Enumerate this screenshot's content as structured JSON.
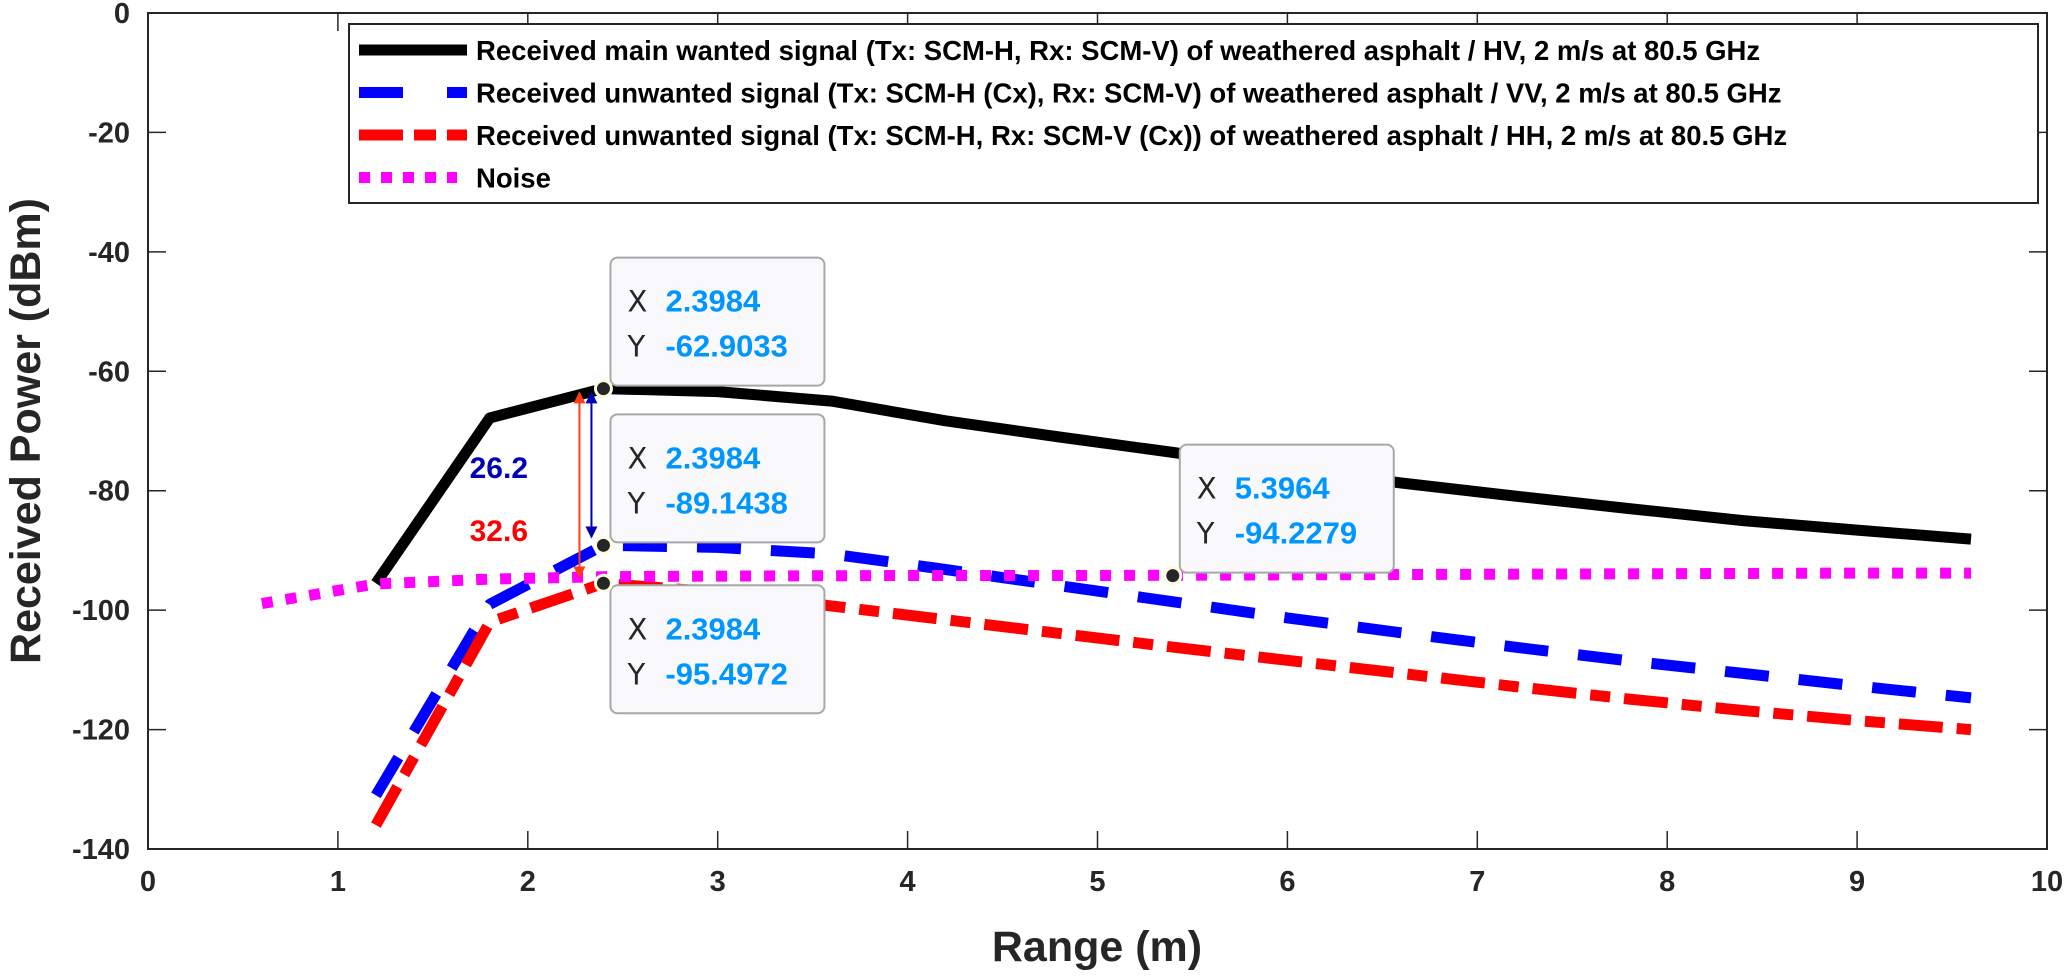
{
  "chart_data": {
    "type": "line",
    "title": "",
    "xlabel": "Range (m)",
    "ylabel": "Received Power (dBm)",
    "xlim": [
      0,
      10
    ],
    "ylim": [
      -140,
      0
    ],
    "xticks": [
      "0",
      "1",
      "2",
      "3",
      "4",
      "5",
      "6",
      "7",
      "8",
      "9",
      "10"
    ],
    "yticks": [
      "0",
      "-20",
      "-40",
      "-60",
      "-80",
      "-100",
      "-120",
      "-140"
    ],
    "grid": false,
    "legend_position": "top-right",
    "series": [
      {
        "name": "Received main wanted signal (Tx: SCM-H, Rx: SCM-V) of weathered asphalt / HV, 2 m/s at 80.5 GHz",
        "color": "#000000",
        "style": "solid",
        "x": [
          1.2,
          1.8,
          2.3984,
          3.0,
          3.6,
          4.2,
          4.8,
          5.4,
          6.0,
          6.6,
          7.2,
          7.8,
          8.4,
          9.0,
          9.6
        ],
        "y": [
          -95.5,
          -67.8,
          -62.9,
          -63.4,
          -65.0,
          -68.3,
          -71.0,
          -73.6,
          -76.3,
          -78.7,
          -80.9,
          -83.0,
          -85.0,
          -86.6,
          -88.1
        ]
      },
      {
        "name": "Received unwanted signal (Tx: SCM-H (Cx), Rx: SCM-V) of weathered asphalt / VV, 2 m/s at 80.5 GHz",
        "color": "#0000ff",
        "style": "dashed",
        "x": [
          1.2,
          1.8,
          2.3984,
          3.0,
          3.6,
          4.2,
          4.8,
          5.4,
          6.0,
          6.6,
          7.2,
          7.8,
          8.4,
          9.0,
          9.6
        ],
        "y": [
          -131.0,
          -99.0,
          -89.1438,
          -89.5,
          -90.6,
          -93.2,
          -95.9,
          -98.6,
          -101.3,
          -103.8,
          -106.2,
          -108.5,
          -110.6,
          -112.7,
          -114.7
        ]
      },
      {
        "name": "Received unwanted signal (Tx: SCM-H, Rx: SCM-V (Cx)) of weathered asphalt / HH, 2 m/s at 80.5 GHz",
        "color": "#ff0000",
        "style": "dashdot",
        "x": [
          1.2,
          1.8,
          2.3984,
          3.0,
          3.6,
          4.2,
          4.8,
          5.4,
          6.0,
          6.6,
          7.2,
          7.8,
          8.4,
          9.0,
          9.6
        ],
        "y": [
          -136.0,
          -102.0,
          -95.4972,
          -97.0,
          -99.3,
          -101.6,
          -103.9,
          -106.2,
          -108.4,
          -110.6,
          -112.8,
          -114.9,
          -116.8,
          -118.5,
          -120.0
        ]
      },
      {
        "name": "Noise",
        "color": "#ff00ff",
        "style": "dotted",
        "x": [
          0.6,
          1.2,
          1.8,
          2.4,
          3.0,
          4.0,
          5.0,
          6.0,
          7.0,
          8.0,
          9.0,
          9.6
        ],
        "y": [
          -98.9,
          -95.6,
          -94.8,
          -94.4,
          -94.3,
          -94.2,
          -94.2,
          -94.1,
          -94.0,
          -93.9,
          -93.8,
          -93.8
        ]
      }
    ],
    "datatips": [
      {
        "x_label": "X",
        "y_label": "Y",
        "x": "2.3984",
        "y": "-62.9033",
        "px": 2.3984,
        "py": -62.9033,
        "box": "above"
      },
      {
        "x_label": "X",
        "y_label": "Y",
        "x": "2.3984",
        "y": "-89.1438",
        "px": 2.3984,
        "py": -89.1438,
        "box": "above"
      },
      {
        "x_label": "X",
        "y_label": "Y",
        "x": "2.3984",
        "y": "-95.4972",
        "px": 2.3984,
        "py": -95.4972,
        "box": "below"
      },
      {
        "x_label": "X",
        "y_label": "Y",
        "x": "5.3964",
        "y": "-94.2279",
        "px": 5.3964,
        "py": -94.2279,
        "box": "above"
      }
    ],
    "annotations": [
      {
        "text": "26.2",
        "color": "#0000b4",
        "from": -62.9033,
        "to": -89.1438
      },
      {
        "text": "32.6",
        "color": "#ff0000",
        "arrow_color": "#ff3c14",
        "from": -62.9033,
        "to": -95.4972
      }
    ],
    "tip_value_color": "#0096ff"
  }
}
